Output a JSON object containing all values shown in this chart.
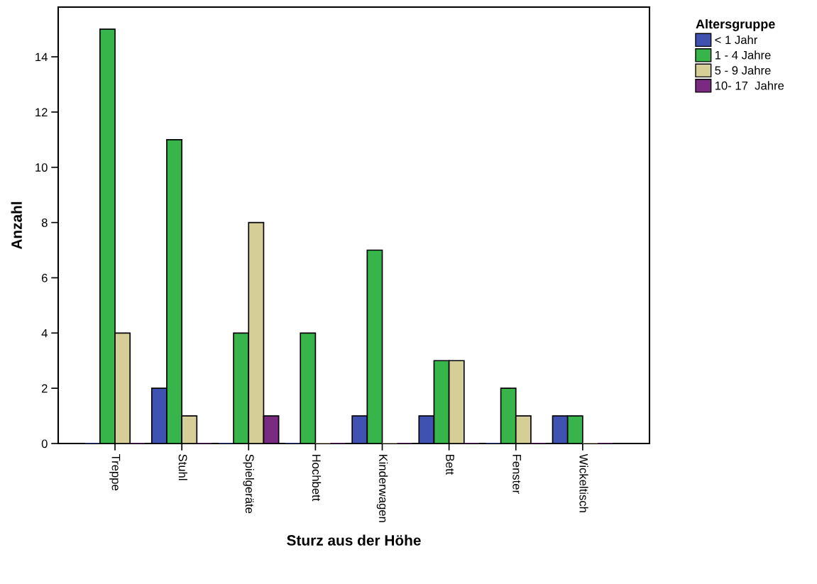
{
  "chart_data": {
    "type": "bar",
    "xlabel": "Sturz aus der Höhe",
    "ylabel": "Anzahl",
    "legend_title": "Altersgruppe",
    "legend": "right",
    "categories": [
      "Treppe",
      "Stuhl",
      "Spielgeräte",
      "Hochbett",
      "Kinderwagen",
      "Bett",
      "Fenster",
      "Wickeltisch"
    ],
    "series": [
      {
        "name": "< 1 Jahr",
        "color": "#3f51b1",
        "values": [
          0,
          2,
          0,
          0,
          1,
          1,
          0,
          1
        ]
      },
      {
        "name": "1 - 4 Jahre",
        "color": "#37b44a",
        "values": [
          15,
          11,
          4,
          4,
          7,
          3,
          2,
          1
        ]
      },
      {
        "name": "5 - 9 Jahre",
        "color": "#d5cf97",
        "values": [
          4,
          1,
          8,
          0,
          0,
          3,
          1,
          0
        ]
      },
      {
        "name": "10- 17  Jahre",
        "color": "#7b2a82",
        "values": [
          0,
          0,
          1,
          0,
          0,
          0,
          0,
          0
        ]
      }
    ],
    "ylim": [
      0,
      15.8
    ],
    "yticks": [
      0,
      2,
      4,
      6,
      8,
      10,
      12,
      14
    ],
    "grid": false
  }
}
